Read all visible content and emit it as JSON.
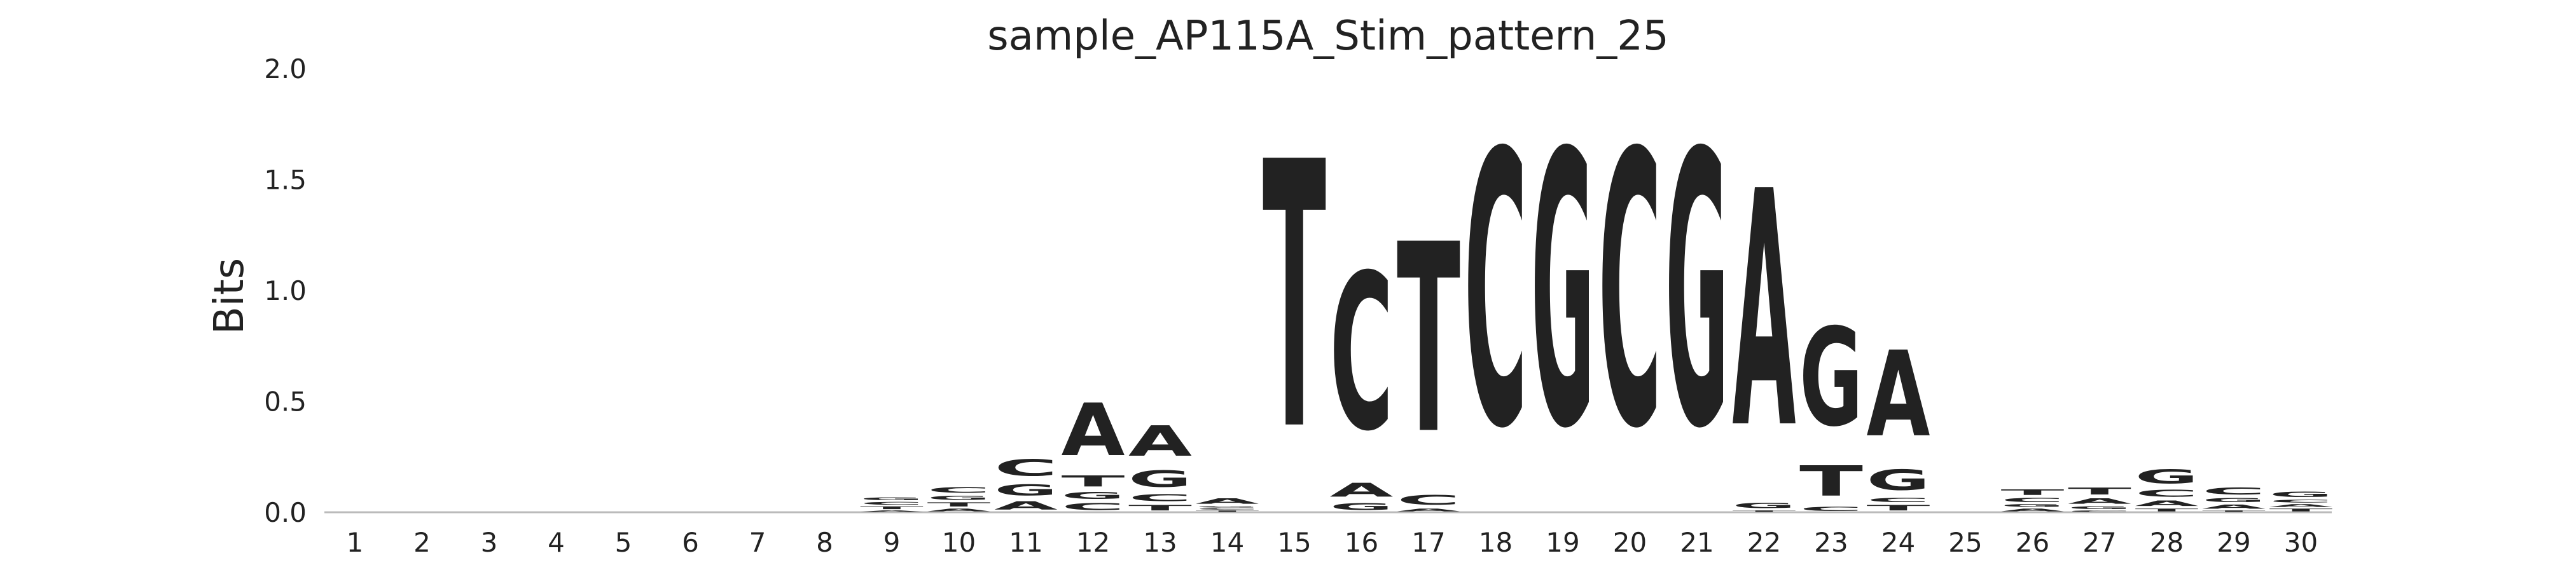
{
  "chart_data": {
    "type": "sequence-logo",
    "title": "sample_AP115A_Stim_pattern_25",
    "xlabel": "",
    "ylabel": "Bits",
    "ylim": [
      0,
      2.0
    ],
    "yticks": [
      "0.0",
      "0.5",
      "1.0",
      "1.5",
      "2.0"
    ],
    "positions": [
      "1",
      "2",
      "3",
      "4",
      "5",
      "6",
      "7",
      "8",
      "9",
      "10",
      "11",
      "12",
      "13",
      "14",
      "15",
      "16",
      "17",
      "18",
      "19",
      "20",
      "21",
      "22",
      "23",
      "24",
      "25",
      "26",
      "27",
      "28",
      "29",
      "30"
    ],
    "colors": {
      "A": "#008000",
      "C": "#0000ff",
      "G": "#ffa500",
      "T": "#ff0000"
    },
    "stacks": [
      [],
      [],
      [],
      [],
      [],
      [],
      [],
      [],
      [
        {
          "base": "A",
          "bits": 0.01
        },
        {
          "base": "T",
          "bits": 0.02
        },
        {
          "base": "C",
          "bits": 0.02
        },
        {
          "base": "G",
          "bits": 0.02
        }
      ],
      [
        {
          "base": "A",
          "bits": 0.02
        },
        {
          "base": "T",
          "bits": 0.03
        },
        {
          "base": "G",
          "bits": 0.03
        },
        {
          "base": "C",
          "bits": 0.04
        }
      ],
      [
        {
          "base": "A",
          "bits": 0.06
        },
        {
          "base": "G",
          "bits": 0.08
        },
        {
          "base": "C",
          "bits": 0.12
        }
      ],
      [
        {
          "base": "C",
          "bits": 0.05
        },
        {
          "base": "G",
          "bits": 0.05
        },
        {
          "base": "T",
          "bits": 0.08
        },
        {
          "base": "A",
          "bits": 0.38
        }
      ],
      [
        {
          "base": "T",
          "bits": 0.04
        },
        {
          "base": "C",
          "bits": 0.05
        },
        {
          "base": "G",
          "bits": 0.12
        },
        {
          "base": "A",
          "bits": 0.22
        }
      ],
      [
        {
          "base": "T",
          "bits": 0.01
        },
        {
          "base": "C",
          "bits": 0.01
        },
        {
          "base": "G",
          "bits": 0.01
        },
        {
          "base": "A",
          "bits": 0.04
        }
      ],
      [
        {
          "base": "T",
          "bits": 1.93
        }
      ],
      [
        {
          "base": "G",
          "bits": 0.05
        },
        {
          "base": "A",
          "bits": 0.1
        },
        {
          "base": "C",
          "bits": 1.13
        }
      ],
      [
        {
          "base": "A",
          "bits": 0.02
        },
        {
          "base": "C",
          "bits": 0.07
        },
        {
          "base": "T",
          "bits": 1.37
        }
      ],
      [
        {
          "base": "C",
          "bits": 1.98
        }
      ],
      [
        {
          "base": "G",
          "bits": 1.98
        }
      ],
      [
        {
          "base": "C",
          "bits": 1.98
        }
      ],
      [
        {
          "base": "G",
          "bits": 1.98
        }
      ],
      [
        {
          "base": "T",
          "bits": 0.01
        },
        {
          "base": "G",
          "bits": 0.04
        },
        {
          "base": "A",
          "bits": 1.71
        }
      ],
      [
        {
          "base": "C",
          "bits": 0.03
        },
        {
          "base": "T",
          "bits": 0.22
        },
        {
          "base": "G",
          "bits": 0.71
        }
      ],
      [
        {
          "base": "T",
          "bits": 0.04
        },
        {
          "base": "C",
          "bits": 0.03
        },
        {
          "base": "G",
          "bits": 0.15
        },
        {
          "base": "A",
          "bits": 0.62
        }
      ],
      [],
      [
        {
          "base": "A",
          "bits": 0.02
        },
        {
          "base": "G",
          "bits": 0.02
        },
        {
          "base": "C",
          "bits": 0.03
        },
        {
          "base": "T",
          "bits": 0.04
        }
      ],
      [
        {
          "base": "C",
          "bits": 0.01
        },
        {
          "base": "G",
          "bits": 0.02
        },
        {
          "base": "A",
          "bits": 0.04
        },
        {
          "base": "T",
          "bits": 0.05
        }
      ],
      [
        {
          "base": "T",
          "bits": 0.02
        },
        {
          "base": "A",
          "bits": 0.04
        },
        {
          "base": "C",
          "bits": 0.05
        },
        {
          "base": "G",
          "bits": 0.1
        }
      ],
      [
        {
          "base": "T",
          "bits": 0.01
        },
        {
          "base": "A",
          "bits": 0.03
        },
        {
          "base": "G",
          "bits": 0.03
        },
        {
          "base": "C",
          "bits": 0.05
        }
      ],
      [
        {
          "base": "T",
          "bits": 0.02
        },
        {
          "base": "A",
          "bits": 0.02
        },
        {
          "base": "C",
          "bits": 0.02
        },
        {
          "base": "G",
          "bits": 0.04
        }
      ]
    ]
  }
}
